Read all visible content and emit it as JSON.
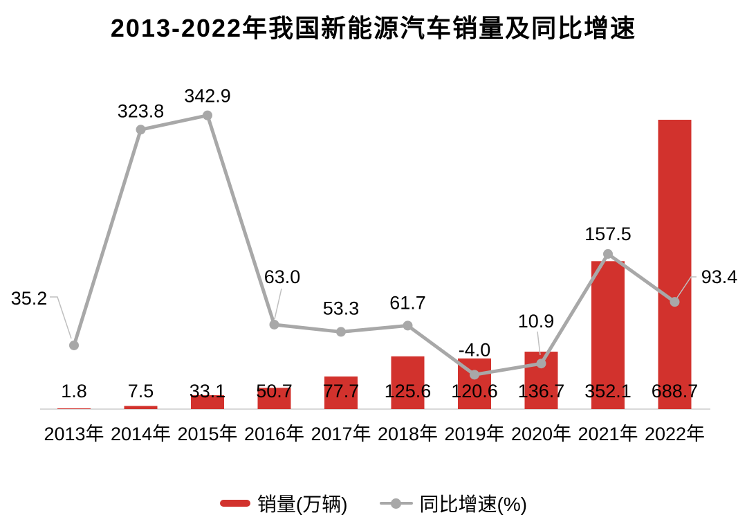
{
  "chart_data": {
    "type": "bar",
    "subtype": "combo-bar-line",
    "title": "2013-2022年我国新能源汽车销量及同比增速",
    "categories": [
      "2013年",
      "2014年",
      "2015年",
      "2016年",
      "2017年",
      "2018年",
      "2019年",
      "2020年",
      "2021年",
      "2022年"
    ],
    "series": [
      {
        "name": "销量(万辆)",
        "type": "bar",
        "color": "#d2322d",
        "values": [
          1.8,
          7.5,
          33.1,
          50.7,
          77.7,
          125.6,
          120.6,
          136.7,
          352.1,
          688.7
        ]
      },
      {
        "name": "同比增速(%)",
        "type": "line",
        "color": "#a8a8a8",
        "values": [
          35.2,
          323.8,
          342.9,
          63.0,
          53.3,
          61.7,
          -4.0,
          10.9,
          157.5,
          93.4
        ]
      }
    ],
    "legend_position": "bottom",
    "grid": false,
    "data_labels": true,
    "axes": {
      "x_axis_visible": true,
      "y_axis_visible": false,
      "bar_axis_range": [
        0,
        700
      ],
      "line_axis_range": [
        -50,
        400
      ]
    },
    "colors": {
      "axis_line": "#d9d9d9",
      "leader_line": "#bfbfbf",
      "label_text": "#000000"
    }
  }
}
